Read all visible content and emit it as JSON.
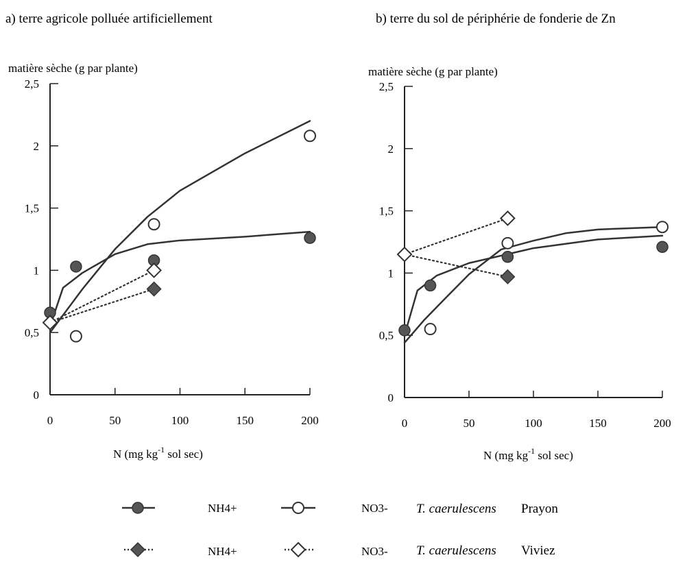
{
  "chart_data": [
    {
      "type": "scatter",
      "title": "a) terre agricole polluée artificiellement",
      "ylabel": "matière sèche (g par plante)",
      "xlabel_main": "N (mg kg",
      "xlabel_sup": "-1",
      "xlabel_end": " sol sec)",
      "xlim": [
        0,
        200
      ],
      "ylim": [
        0,
        2.5
      ],
      "x_ticks": [
        0,
        50,
        100,
        150,
        200
      ],
      "x_tick_labels": [
        "0",
        "50",
        "100",
        "150",
        "200"
      ],
      "y_ticks": [
        0,
        0.5,
        1,
        1.5,
        2,
        2.5
      ],
      "y_tick_labels": [
        "0",
        "0,5",
        "1",
        "1,5",
        "2",
        "2,5"
      ],
      "series": [
        {
          "key": "prayon_nh4",
          "marker": "circle-filled",
          "x": [
            0,
            20,
            80,
            200
          ],
          "y": [
            0.66,
            1.03,
            1.08,
            1.26
          ]
        },
        {
          "key": "prayon_no3",
          "marker": "circle-open",
          "x": [
            20,
            80,
            200
          ],
          "y": [
            0.47,
            1.37,
            2.08
          ]
        },
        {
          "key": "viviez_nh4",
          "marker": "diamond-filled",
          "x": [
            0,
            80
          ],
          "y": [
            0.58,
            0.85
          ]
        },
        {
          "key": "viviez_no3",
          "marker": "diamond-open",
          "x": [
            0,
            80
          ],
          "y": [
            0.58,
            1.0
          ]
        }
      ],
      "fits": [
        {
          "key": "prayon_nh4_fit",
          "x": [
            0,
            10,
            25,
            50,
            75,
            100,
            150,
            200
          ],
          "y": [
            0.55,
            0.86,
            0.98,
            1.13,
            1.21,
            1.24,
            1.27,
            1.31
          ]
        },
        {
          "key": "prayon_no3_fit",
          "x": [
            0,
            25,
            50,
            75,
            100,
            150,
            200
          ],
          "y": [
            0.5,
            0.85,
            1.17,
            1.43,
            1.64,
            1.94,
            2.2
          ]
        },
        {
          "key": "viviez_nh4_fit",
          "style": "dotted",
          "x": [
            0,
            80
          ],
          "y": [
            0.58,
            0.85
          ]
        },
        {
          "key": "viviez_no3_fit",
          "style": "dotted",
          "x": [
            0,
            80
          ],
          "y": [
            0.58,
            1.0
          ]
        }
      ]
    },
    {
      "type": "scatter",
      "title": "b) terre du sol de périphérie de fonderie de Zn",
      "ylabel": "matière sèche (g par plante)",
      "xlabel_main": "N (mg kg",
      "xlabel_sup": "-1",
      "xlabel_end": " sol sec)",
      "xlim": [
        0,
        200
      ],
      "ylim": [
        0,
        2.5
      ],
      "x_ticks": [
        0,
        50,
        100,
        150,
        200
      ],
      "x_tick_labels": [
        "0",
        "50",
        "100",
        "150",
        "200"
      ],
      "y_ticks": [
        0,
        0.5,
        1,
        1.5,
        2,
        2.5
      ],
      "y_tick_labels": [
        "0",
        "0,5",
        "1",
        "1,5",
        "2",
        "2,5"
      ],
      "series": [
        {
          "key": "prayon_nh4",
          "marker": "circle-filled",
          "x": [
            0,
            20,
            80,
            200
          ],
          "y": [
            0.54,
            0.9,
            1.13,
            1.21
          ]
        },
        {
          "key": "prayon_no3",
          "marker": "circle-open",
          "x": [
            20,
            80,
            200
          ],
          "y": [
            0.55,
            1.24,
            1.37
          ]
        },
        {
          "key": "viviez_nh4",
          "marker": "diamond-filled",
          "x": [
            0,
            80
          ],
          "y": [
            1.15,
            0.97
          ]
        },
        {
          "key": "viviez_no3",
          "marker": "diamond-open",
          "x": [
            0,
            80
          ],
          "y": [
            1.15,
            1.44
          ]
        }
      ],
      "fits": [
        {
          "key": "prayon_nh4_fit",
          "x": [
            0,
            10,
            25,
            50,
            75,
            100,
            150,
            200
          ],
          "y": [
            0.5,
            0.86,
            0.98,
            1.08,
            1.14,
            1.2,
            1.27,
            1.3
          ]
        },
        {
          "key": "prayon_no3_fit",
          "x": [
            0,
            15,
            30,
            50,
            75,
            100,
            125,
            150,
            175,
            200
          ],
          "y": [
            0.44,
            0.62,
            0.78,
            0.99,
            1.19,
            1.26,
            1.32,
            1.35,
            1.36,
            1.37
          ]
        },
        {
          "key": "viviez_no3_fit",
          "style": "dotted",
          "x": [
            0,
            80
          ],
          "y": [
            1.15,
            1.44
          ]
        },
        {
          "key": "viviez_nh4_fit",
          "style": "dotted",
          "x": [
            0,
            80
          ],
          "y": [
            1.15,
            0.97
          ]
        }
      ]
    }
  ],
  "legend": {
    "row1": {
      "label1": "NH4+",
      "label2": "NO3-",
      "species": "T. caerulescens",
      "cultivar": "Prayon"
    },
    "row2": {
      "label1": "NH4+",
      "label2": "NO3-",
      "species": "T. caerulescens",
      "cultivar": "Viviez"
    }
  }
}
